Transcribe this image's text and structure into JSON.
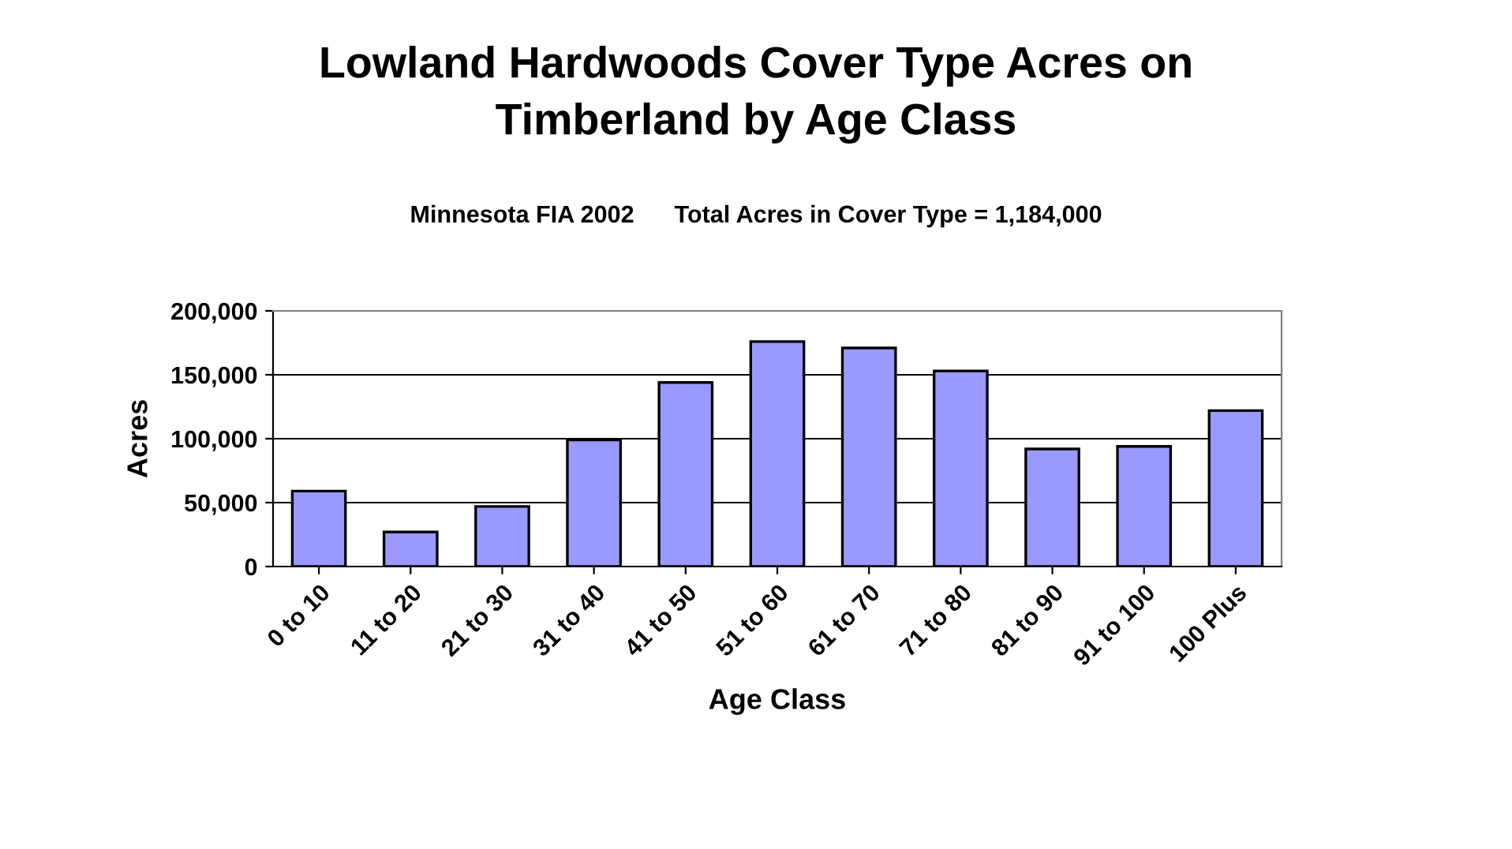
{
  "chart_data": {
    "type": "bar",
    "title": "Lowland Hardwoods Cover Type Acres on\nTimberland by Age Class",
    "subtitle": "Minnesota FIA 2002      Total Acres in Cover Type = 1,184,000",
    "xlabel": "Age Class",
    "ylabel": "Acres",
    "categories": [
      "0 to 10",
      "11 to 20",
      "21 to 30",
      "31 to 40",
      "41 to 50",
      "51 to 60",
      "61 to 70",
      "71 to 80",
      "81 to 90",
      "91 to 100",
      "100 Plus"
    ],
    "values": [
      59000,
      27000,
      47000,
      99000,
      144000,
      176000,
      171000,
      153000,
      92000,
      94000,
      122000
    ],
    "color": "#9999ff",
    "ylim": [
      0,
      200000
    ],
    "yticks": [
      {
        "value": 0,
        "label": "0"
      },
      {
        "value": 50000,
        "label": "50,000"
      },
      {
        "value": 100000,
        "label": "100,000"
      },
      {
        "value": 150000,
        "label": "150,000"
      },
      {
        "value": 200000,
        "label": "200,000"
      }
    ],
    "grid": "y",
    "legend": false
  }
}
